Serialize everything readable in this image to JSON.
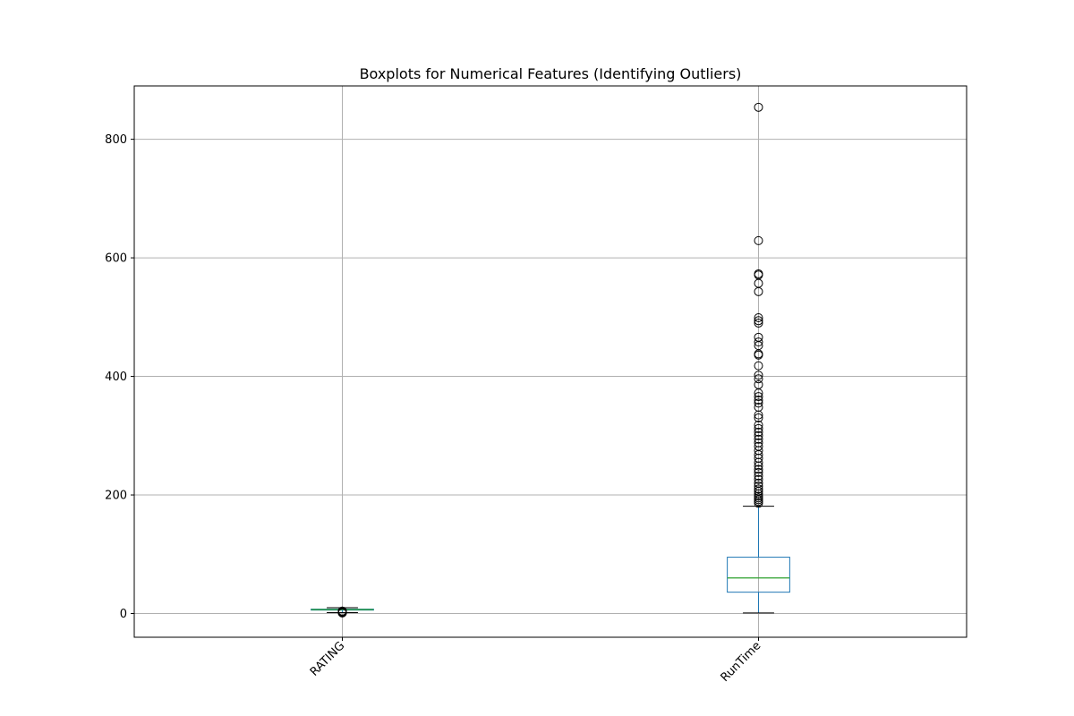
{
  "chart_data": {
    "type": "boxplot",
    "title": "Boxplots for Numerical Features (Identifying Outliers)",
    "xlabel": "",
    "ylabel": "",
    "ylim": [
      -40,
      890
    ],
    "yticks": [
      0,
      200,
      400,
      600,
      800
    ],
    "grid": true,
    "categories": [
      "RATING",
      "RunTime"
    ],
    "colors": {
      "box": "#1f77b4",
      "median": "#2ca02c",
      "whisker": "#1f77b4",
      "cap": "#000000",
      "flier": "#000000",
      "grid": "#b0b0b0"
    },
    "boxes": [
      {
        "name": "RATING",
        "whislo": 1.5,
        "q1": 5.8,
        "med": 6.6,
        "q3": 7.4,
        "whishi": 9.8,
        "fliers": [
          1.0,
          1.5,
          2.0,
          2.5,
          3.0,
          3.3,
          3.6,
          3.9,
          4.1
        ]
      },
      {
        "name": "RunTime",
        "whislo": 1,
        "q1": 36,
        "med": 60,
        "q3": 95,
        "whishi": 181,
        "fliers": [
          186,
          189,
          192,
          195,
          198,
          202,
          206,
          210,
          215,
          220,
          226,
          232,
          238,
          243,
          249,
          255,
          262,
          268,
          275,
          282,
          288,
          294,
          300,
          306,
          312,
          318,
          330,
          335,
          348,
          355,
          360,
          366,
          372,
          386,
          396,
          402,
          418,
          436,
          438,
          452,
          458,
          466,
          490,
          494,
          499,
          543,
          557,
          571,
          573,
          629,
          854
        ]
      }
    ]
  }
}
